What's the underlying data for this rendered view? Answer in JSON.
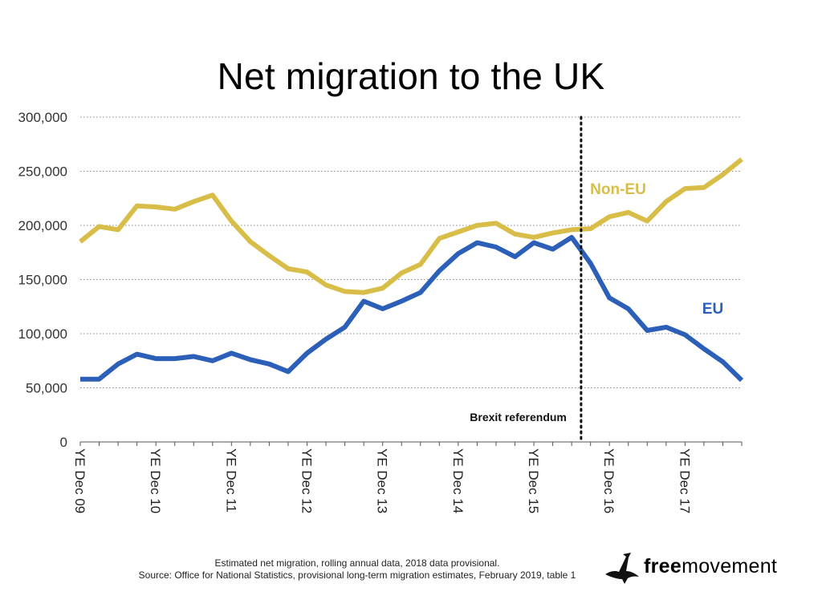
{
  "chart_data": {
    "type": "line",
    "title": "Net migration to the UK",
    "x": [
      "YE Dec 09",
      "",
      "",
      "",
      "YE Dec 10",
      "",
      "",
      "",
      "YE Dec 11",
      "",
      "",
      "",
      "YE Dec 12",
      "",
      "",
      "",
      "YE Dec 13",
      "",
      "",
      "",
      "YE Dec 14",
      "",
      "",
      "",
      "YE Dec 15",
      "",
      "",
      "",
      "YE Dec 16",
      "",
      "",
      "",
      "YE Dec 17",
      "",
      "",
      ""
    ],
    "series": [
      {
        "name": "Non-EU",
        "color": "#d8be48",
        "values": [
          185000,
          199000,
          196000,
          218000,
          217000,
          215000,
          222000,
          228000,
          204000,
          185000,
          172000,
          160000,
          157000,
          145000,
          139000,
          138000,
          142000,
          156000,
          164000,
          188000,
          194000,
          200000,
          202000,
          192000,
          189000,
          193000,
          196000,
          197000,
          208000,
          212000,
          204000,
          222000,
          234000,
          235000,
          247000,
          261000
        ]
      },
      {
        "name": "EU",
        "color": "#2b5fb8",
        "values": [
          58000,
          58000,
          72000,
          81000,
          77000,
          77000,
          79000,
          75000,
          82000,
          76000,
          72000,
          65000,
          82000,
          95000,
          106000,
          130000,
          123000,
          130000,
          138000,
          158000,
          174000,
          184000,
          180000,
          171000,
          184000,
          178000,
          189000,
          165000,
          133000,
          123000,
          103000,
          106000,
          99000,
          86000,
          74000,
          57000
        ]
      }
    ],
    "ylim": [
      0,
      300000
    ],
    "yticks": [
      "0",
      "50,000",
      "100,000",
      "150,000",
      "200,000",
      "250,000",
      "300,000"
    ],
    "grid": true,
    "annotations": [
      {
        "text": "Brexit referendum",
        "x_index": 26.5
      }
    ]
  },
  "footnote": {
    "line1": "Estimated net migration, rolling annual data, 2018 data provisional.",
    "line2": "Source: Office for National Statistics, provisional long-term migration estimates, February 2019, table 1"
  },
  "brand": {
    "bold": "free",
    "regular": "movement",
    "logo": "bird-icon"
  }
}
